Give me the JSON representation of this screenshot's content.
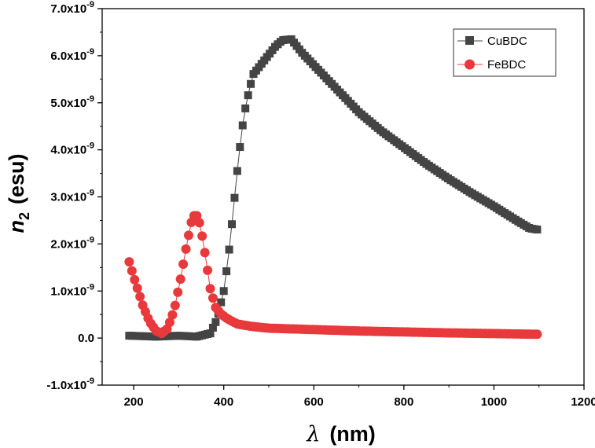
{
  "chart_data": {
    "type": "scatter",
    "title": "",
    "xlabel": {
      "symbol": "λ",
      "unit": "(nm)"
    },
    "ylabel": {
      "symbol": "n",
      "subscript": "2",
      "unit": "(esu)"
    },
    "xlim": [
      130,
      1200
    ],
    "ylim": [
      -1e-09,
      7e-09
    ],
    "x_ticks": [
      200,
      400,
      600,
      800,
      1000,
      1200
    ],
    "x_tick_labels": [
      "200",
      "400",
      "600",
      "800",
      "1000",
      "1200"
    ],
    "y_ticks": [
      -1e-09,
      0,
      1e-09,
      2e-09,
      3e-09,
      4e-09,
      5e-09,
      6e-09,
      7e-09
    ],
    "y_tick_labels": [
      {
        "mant": "-1.0x10",
        "exp": "-9"
      },
      {
        "mant": "0.0",
        "exp": ""
      },
      {
        "mant": "1.0x10",
        "exp": "-9"
      },
      {
        "mant": "2.0x10",
        "exp": "-9"
      },
      {
        "mant": "3.0x10",
        "exp": "-9"
      },
      {
        "mant": "4.0x10",
        "exp": "-9"
      },
      {
        "mant": "5.0x10",
        "exp": "-9"
      },
      {
        "mant": "6.0x10",
        "exp": "-9"
      },
      {
        "mant": "7.0x10",
        "exp": "-9"
      }
    ],
    "grid": false,
    "legend_position": "top-right",
    "series": [
      {
        "name": "CuBDC",
        "marker": "square",
        "color": "#444444",
        "x_start": 190,
        "x_end": 1100,
        "x_step": 6,
        "anchors": [
          [
            190,
            5e-11
          ],
          [
            250,
            3e-11
          ],
          [
            300,
            5e-11
          ],
          [
            340,
            3e-11
          ],
          [
            370,
            1e-10
          ],
          [
            385,
            4e-10
          ],
          [
            400,
            1e-09
          ],
          [
            410,
            1.7e-09
          ],
          [
            420,
            2.6e-09
          ],
          [
            430,
            3.55e-09
          ],
          [
            440,
            4.4e-09
          ],
          [
            450,
            5e-09
          ],
          [
            465,
            5.6e-09
          ],
          [
            490,
            5.9e-09
          ],
          [
            515,
            6.2e-09
          ],
          [
            530,
            6.33e-09
          ],
          [
            550,
            6.35e-09
          ],
          [
            575,
            6.05e-09
          ],
          [
            600,
            5.8e-09
          ],
          [
            650,
            5.3e-09
          ],
          [
            700,
            4.8e-09
          ],
          [
            750,
            4.4e-09
          ],
          [
            800,
            4.05e-09
          ],
          [
            850,
            3.7e-09
          ],
          [
            900,
            3.38e-09
          ],
          [
            950,
            3.08e-09
          ],
          [
            1000,
            2.8e-09
          ],
          [
            1050,
            2.5e-09
          ],
          [
            1080,
            2.33e-09
          ],
          [
            1100,
            2.3e-09
          ]
        ]
      },
      {
        "name": "FeBDC",
        "marker": "circle",
        "color": "#e8393c",
        "x_start": 190,
        "x_end": 1100,
        "x_step": 6,
        "anchors": [
          [
            190,
            1.62e-09
          ],
          [
            200,
            1.3e-09
          ],
          [
            210,
            1e-09
          ],
          [
            220,
            7e-10
          ],
          [
            235,
            3.5e-10
          ],
          [
            250,
            1.5e-10
          ],
          [
            262,
            1e-10
          ],
          [
            275,
            2e-10
          ],
          [
            290,
            6e-10
          ],
          [
            305,
            1.3e-09
          ],
          [
            318,
            2e-09
          ],
          [
            330,
            2.55e-09
          ],
          [
            338,
            2.65e-09
          ],
          [
            348,
            2.4e-09
          ],
          [
            360,
            1.7e-09
          ],
          [
            370,
            1.05e-09
          ],
          [
            382,
            6.5e-10
          ],
          [
            395,
            5e-10
          ],
          [
            410,
            4e-10
          ],
          [
            430,
            3e-10
          ],
          [
            460,
            2.5e-10
          ],
          [
            500,
            2.1e-10
          ],
          [
            600,
            1.8e-10
          ],
          [
            700,
            1.5e-10
          ],
          [
            800,
            1.3e-10
          ],
          [
            900,
            1.1e-10
          ],
          [
            1000,
            9.5e-11
          ],
          [
            1100,
            8e-11
          ]
        ]
      }
    ]
  }
}
